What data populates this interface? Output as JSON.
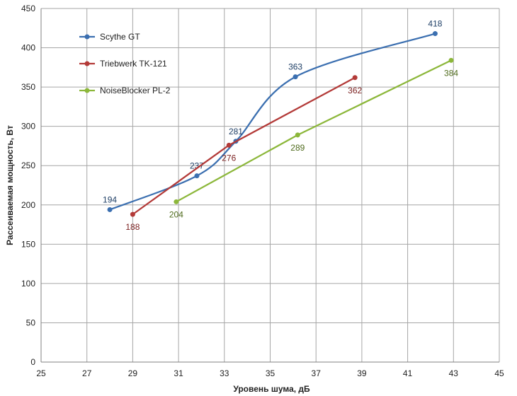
{
  "chart_data": {
    "type": "line",
    "xlabel": "Уровень шума, дБ",
    "ylabel": "Рассеиваемая мощность, Вт",
    "xlim": [
      25,
      45
    ],
    "ylim": [
      0,
      450
    ],
    "xticks": [
      25,
      27,
      29,
      31,
      33,
      35,
      37,
      39,
      41,
      43,
      45
    ],
    "yticks": [
      0,
      50,
      100,
      150,
      200,
      250,
      300,
      350,
      400,
      450
    ],
    "grid": true,
    "legend_position": "top-left",
    "series": [
      {
        "name": "Scythe GT",
        "color": "#3b6fb0",
        "smooth": true,
        "x": [
          28.0,
          31.8,
          33.5,
          36.1,
          42.2
        ],
        "y": [
          194,
          237,
          281,
          363,
          418
        ],
        "labels": [
          "194",
          "237",
          "281",
          "363",
          "418"
        ],
        "label_pos": [
          "above",
          "above",
          "above",
          "above",
          "above"
        ]
      },
      {
        "name": "Triebwerk TK-121",
        "color": "#b33a38",
        "smooth": false,
        "x": [
          29.0,
          33.2,
          38.7
        ],
        "y": [
          188,
          276,
          362
        ],
        "labels": [
          "188",
          "276",
          "362"
        ],
        "label_pos": [
          "below",
          "below",
          "below"
        ]
      },
      {
        "name": "NoiseBlocker PL-2",
        "color": "#8cb73a",
        "smooth": false,
        "x": [
          30.9,
          36.2,
          42.9
        ],
        "y": [
          204,
          289,
          384
        ],
        "labels": [
          "204",
          "289",
          "384"
        ],
        "label_pos": [
          "below",
          "below",
          "below"
        ]
      }
    ]
  }
}
